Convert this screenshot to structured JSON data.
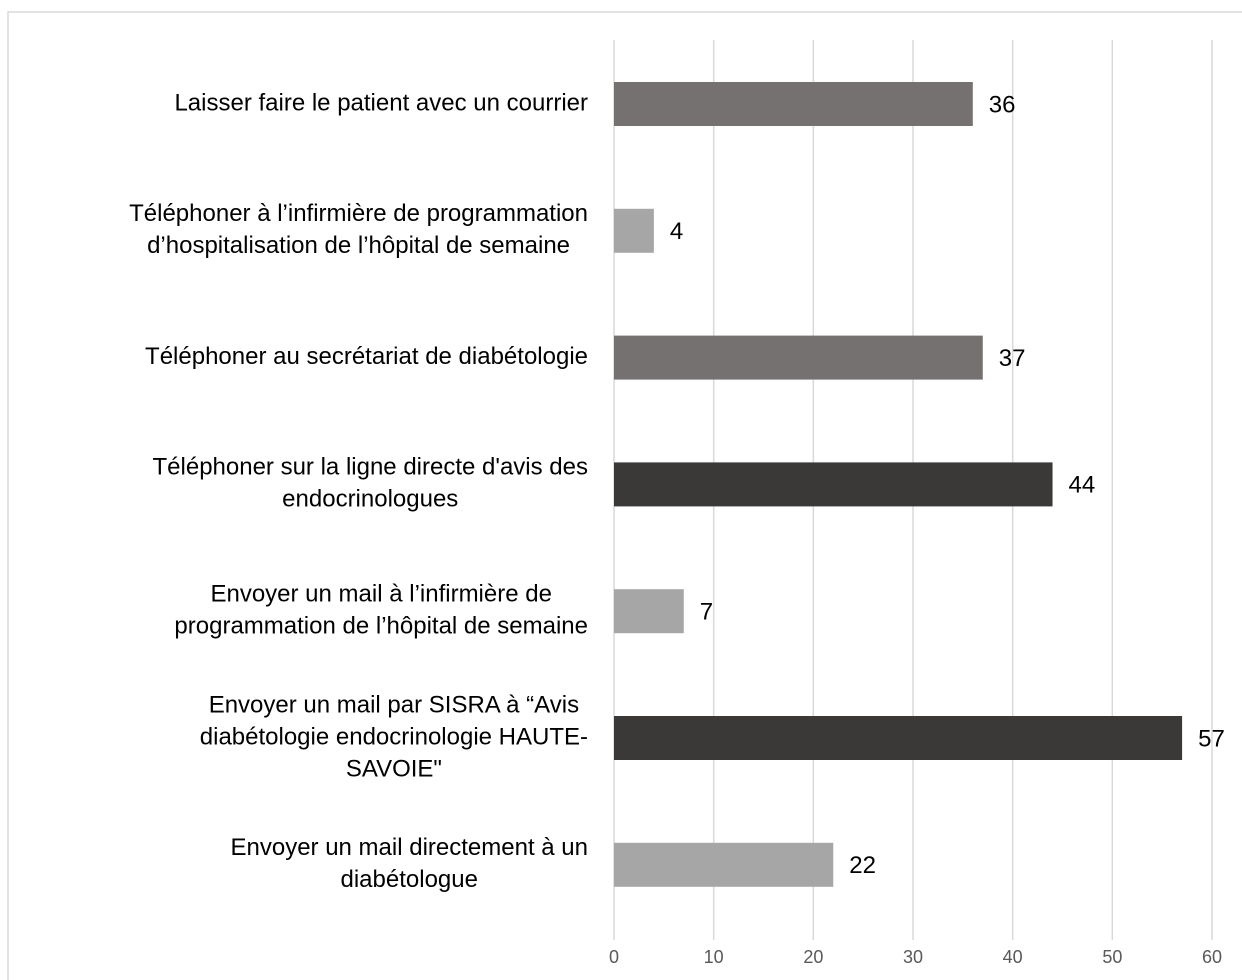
{
  "chart_data": {
    "type": "barh",
    "categories": [
      [
        "Laisser faire le patient avec un courrier"
      ],
      [
        "Téléphoner à l’infirmière de programmation",
        "d’hospitalisation de l’hôpital de semaine"
      ],
      [
        "Téléphoner au secrétariat de diabétologie"
      ],
      [
        "Téléphoner sur la ligne directe d'avis des",
        "endocrinologues"
      ],
      [
        "Envoyer un mail à l’infirmière de",
        "programmation de l’hôpital de semaine"
      ],
      [
        "Envoyer un mail par SISRA à “Avis",
        "diabétologie endocrinologie HAUTE-",
        "SAVOIE\""
      ],
      [
        "Envoyer un mail directement à un",
        "diabétologue"
      ]
    ],
    "values": [
      36,
      4,
      37,
      44,
      7,
      57,
      22
    ],
    "colors": [
      "#767171",
      "#a6a6a6",
      "#767171",
      "#3b3838",
      "#a6a6a6",
      "#3b3838",
      "#a6a6a6"
    ],
    "xlim": [
      0,
      60
    ],
    "xticks": [
      0,
      10,
      20,
      30,
      40,
      50,
      60
    ],
    "grid": true
  }
}
